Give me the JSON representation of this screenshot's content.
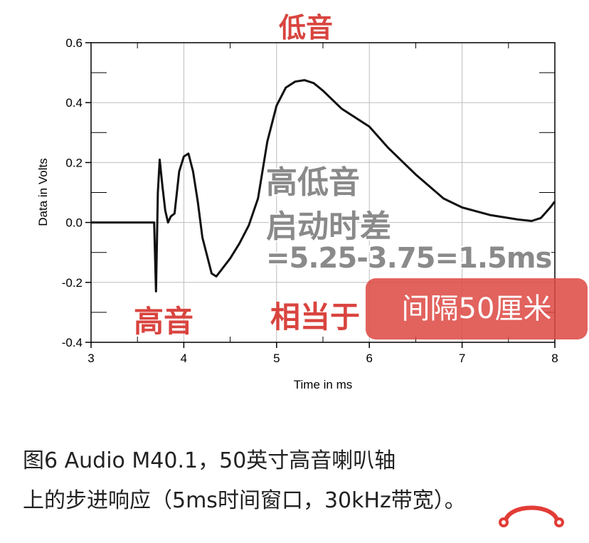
{
  "annotations": {
    "top_label": "低音",
    "tweeter_label": "高音",
    "diff_title": "高低音",
    "diff_line2": "启动时差",
    "diff_formula": "=5.25-3.75=1.5ms",
    "equiv_label": "相当于",
    "distance_pill": "间隔50厘米"
  },
  "caption": {
    "line1": "图6 Audio M40.1，50英寸高音喇叭轴",
    "line2": "上的步进响应（5ms时间窗口，30kHz带宽）。"
  },
  "colors": {
    "annotation_red": "#d9443f",
    "pill_bg": "#dd4842",
    "curve": "#111111",
    "grid": "#bdbdbd"
  },
  "icons": {
    "logo": "headphones-logo-icon"
  },
  "chart_data": {
    "type": "line",
    "xlabel": "Time in ms",
    "ylabel": "Data in Volts",
    "xlim": [
      3,
      8
    ],
    "ylim": [
      -0.4,
      0.6
    ],
    "xticks": [
      3,
      4,
      5,
      6,
      7,
      8
    ],
    "yticks": [
      -0.4,
      -0.2,
      0.0,
      0.2,
      0.4,
      0.6
    ],
    "xtick_labels": [
      "3",
      "4",
      "5",
      "6",
      "7",
      "8"
    ],
    "ytick_labels": [
      "-0.4",
      "-0.2",
      "0.0",
      "0.2",
      "0.4",
      "0.6"
    ],
    "grid": true,
    "series": [
      {
        "x": [
          3.0,
          3.6,
          3.68,
          3.7,
          3.72,
          3.74,
          3.77,
          3.8,
          3.83,
          3.86,
          3.9,
          3.95,
          4.0,
          4.05,
          4.1,
          4.15,
          4.2,
          4.3,
          4.35,
          4.4,
          4.5,
          4.6,
          4.7,
          4.8,
          4.9,
          5.0,
          5.1,
          5.2,
          5.3,
          5.4,
          5.5,
          5.7,
          6.0,
          6.2,
          6.5,
          6.8,
          7.0,
          7.3,
          7.6,
          7.75,
          7.85,
          7.95,
          8.0
        ],
        "y": [
          0.0,
          0.0,
          0.0,
          -0.23,
          0.1,
          0.21,
          0.12,
          0.04,
          0.0,
          0.02,
          0.03,
          0.17,
          0.22,
          0.23,
          0.17,
          0.07,
          -0.05,
          -0.17,
          -0.18,
          -0.16,
          -0.12,
          -0.07,
          -0.01,
          0.08,
          0.27,
          0.39,
          0.45,
          0.47,
          0.475,
          0.465,
          0.44,
          0.38,
          0.32,
          0.25,
          0.16,
          0.08,
          0.05,
          0.025,
          0.01,
          0.005,
          0.015,
          0.05,
          0.07
        ]
      }
    ]
  }
}
